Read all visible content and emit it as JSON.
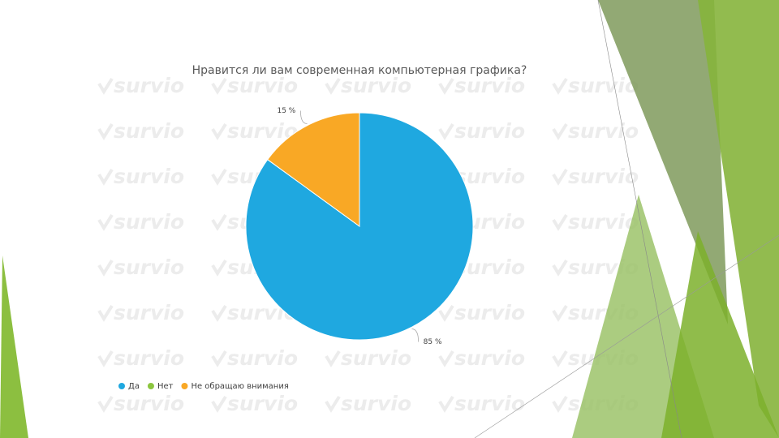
{
  "chart_data": {
    "type": "pie",
    "title": "Нравится ли вам современная компьютерная графика?",
    "categories": [
      "Да",
      "Нет",
      "Не обращаю внимания"
    ],
    "values": [
      85,
      0,
      15
    ],
    "value_labels": [
      "85 %",
      null,
      "15 %"
    ],
    "colors": [
      "#1fa8e0",
      "#8cc63f",
      "#f9a825"
    ],
    "watermark": "survio"
  }
}
